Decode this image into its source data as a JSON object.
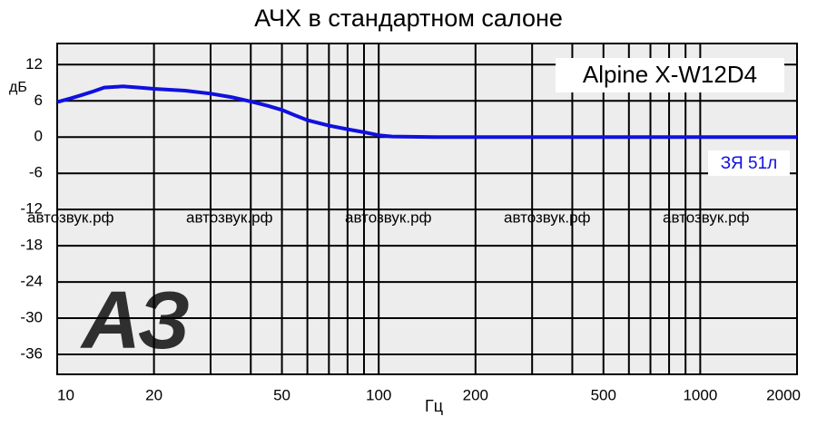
{
  "chart_data": {
    "type": "line",
    "title": "АЧХ в стандартном салоне",
    "annotation": "Alpine X-W12D4",
    "watermark": "автозвук.рф",
    "logo": "АЗ",
    "x_label": "Гц",
    "y_label": "дБ",
    "xscale": "log",
    "xlim": [
      10,
      2000
    ],
    "ylim": [
      -39.3,
      15.5
    ],
    "xticks": [
      10,
      20,
      50,
      100,
      200,
      500,
      1000,
      2000
    ],
    "x_minor_gridlines": [
      30,
      40,
      60,
      70,
      80,
      90,
      300,
      400,
      600,
      700,
      800,
      900
    ],
    "yticks": [
      12,
      6,
      0,
      -6,
      -12,
      -18,
      -24,
      -30,
      -36
    ],
    "grid": true,
    "x": [
      10,
      11,
      12,
      13,
      14,
      16,
      18,
      20,
      25,
      30,
      35,
      40,
      45,
      50,
      55,
      60,
      70,
      80,
      90,
      100,
      110,
      150,
      200,
      500,
      1000,
      2000
    ],
    "series": [
      {
        "name": "ЗЯ 51л",
        "color": "#1010e0",
        "values": [
          5.8,
          6.4,
          7.0,
          7.6,
          8.2,
          8.4,
          8.2,
          8.0,
          7.7,
          7.2,
          6.6,
          5.9,
          5.2,
          4.5,
          3.6,
          2.8,
          1.9,
          1.3,
          0.8,
          0.3,
          0.1,
          0,
          0,
          0,
          0,
          0
        ]
      }
    ]
  }
}
